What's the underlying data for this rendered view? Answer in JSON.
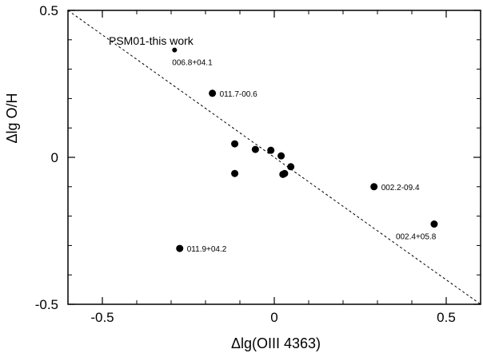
{
  "chart_data": {
    "type": "scatter",
    "xlabel": "Δlg(OIII 4363)",
    "ylabel": "Δlg O/H",
    "xlim": [
      -0.6,
      0.6
    ],
    "ylim": [
      -0.5,
      0.5
    ],
    "x_ticks": [
      -0.5,
      0,
      0.5
    ],
    "x_tick_labels": [
      "-0.5",
      "0",
      "0.5"
    ],
    "y_ticks": [
      -0.5,
      0,
      0.5
    ],
    "y_tick_labels": [
      "-0.5",
      "0",
      "0.5"
    ],
    "grid": false,
    "reference_line": {
      "style": "dashed",
      "from": [
        -0.6,
        0.5
      ],
      "to": [
        0.6,
        -0.5
      ]
    },
    "annotation": "PSM01-this work",
    "points": [
      {
        "x": -0.29,
        "y": 0.365,
        "label": "006.8+04.1",
        "marker": "small"
      },
      {
        "x": -0.18,
        "y": 0.218,
        "label": "011.7-00.6",
        "marker": "large"
      },
      {
        "x": -0.115,
        "y": 0.046,
        "label": "",
        "marker": "large"
      },
      {
        "x": -0.115,
        "y": -0.055,
        "label": "",
        "marker": "large"
      },
      {
        "x": -0.055,
        "y": 0.027,
        "label": "",
        "marker": "large"
      },
      {
        "x": -0.01,
        "y": 0.024,
        "label": "",
        "marker": "large"
      },
      {
        "x": 0.02,
        "y": 0.005,
        "label": "",
        "marker": "large"
      },
      {
        "x": 0.025,
        "y": -0.058,
        "label": "",
        "marker": "large"
      },
      {
        "x": 0.03,
        "y": -0.055,
        "label": "",
        "marker": "large"
      },
      {
        "x": 0.048,
        "y": -0.032,
        "label": "",
        "marker": "large"
      },
      {
        "x": 0.29,
        "y": -0.1,
        "label": "002.2-09.4",
        "marker": "large"
      },
      {
        "x": 0.465,
        "y": -0.227,
        "label": "002.4+05.8",
        "marker": "large"
      },
      {
        "x": -0.275,
        "y": -0.31,
        "label": "011.9+04.2",
        "marker": "large"
      }
    ]
  }
}
